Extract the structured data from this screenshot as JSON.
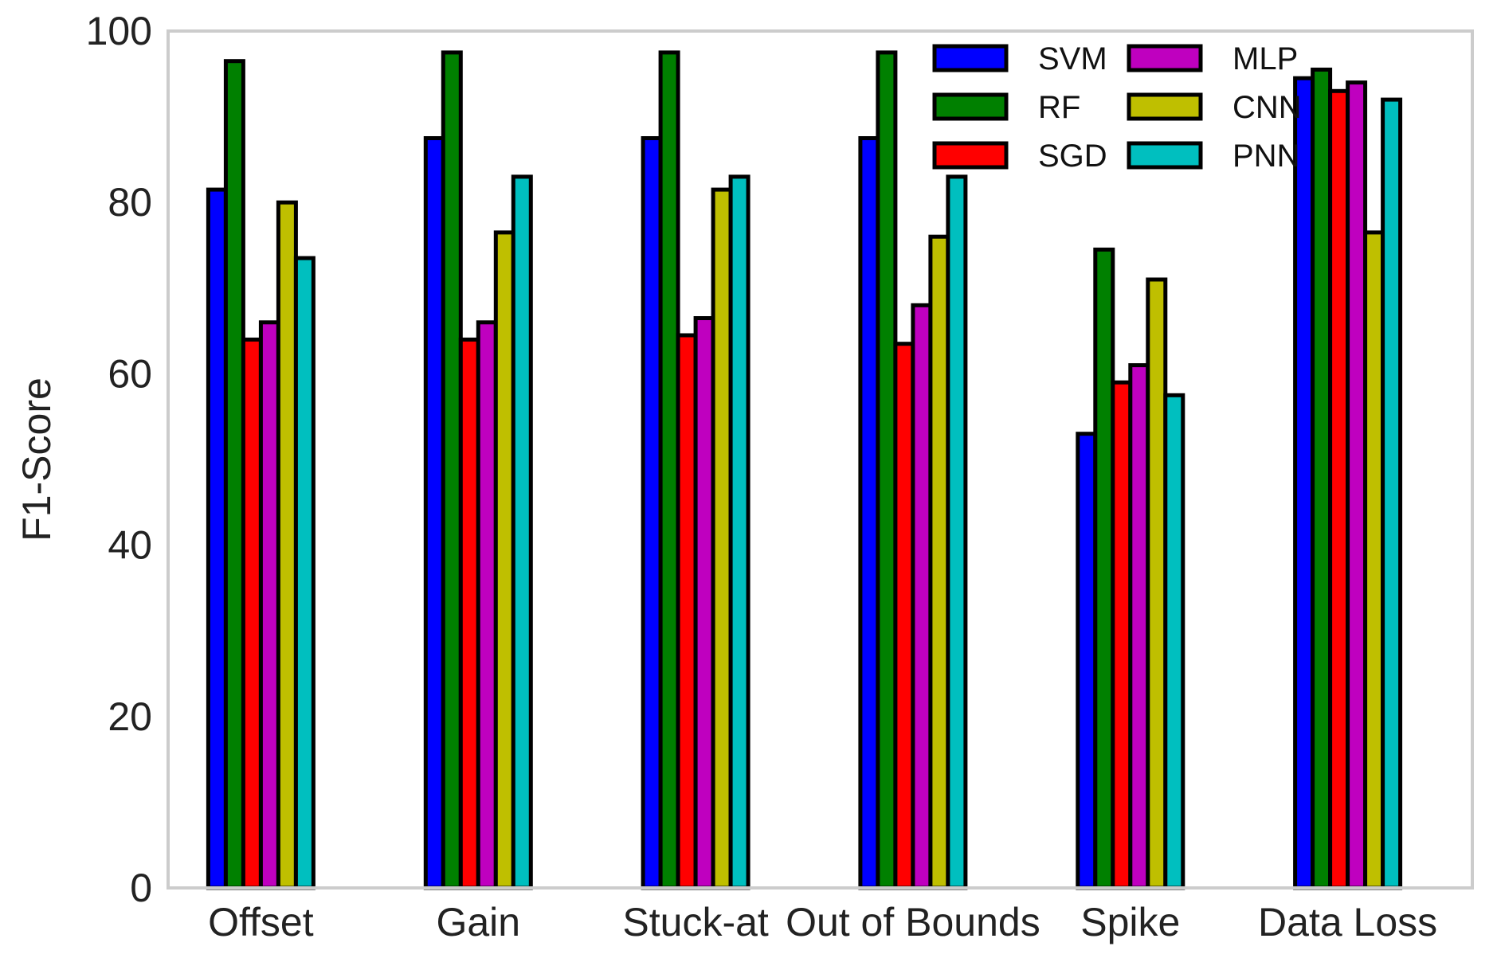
{
  "chart_data": {
    "type": "bar",
    "title": "",
    "xlabel": "",
    "ylabel": "F1-Score",
    "ylim": [
      0,
      100
    ],
    "yticks": [
      "0",
      "20",
      "40",
      "60",
      "80",
      "100"
    ],
    "grid": false,
    "legend_position": "top-right",
    "categories": [
      "Offset",
      "Gain",
      "Stuck-at",
      "Out of Bounds",
      "Spike",
      "Data Loss"
    ],
    "series": [
      {
        "name": "SVM",
        "color": "#0000ff",
        "values": [
          81.5,
          87.5,
          87.5,
          87.5,
          53.0,
          94.5
        ]
      },
      {
        "name": "RF",
        "color": "#008000",
        "values": [
          96.5,
          97.5,
          97.5,
          97.5,
          74.5,
          95.5
        ]
      },
      {
        "name": "SGD",
        "color": "#ff0000",
        "values": [
          64.0,
          64.0,
          64.5,
          63.5,
          59.0,
          93.0
        ]
      },
      {
        "name": "MLP",
        "color": "#bf00bf",
        "values": [
          66.0,
          66.0,
          66.5,
          68.0,
          61.0,
          94.0
        ]
      },
      {
        "name": "CNN",
        "color": "#bfbf00",
        "values": [
          80.0,
          76.5,
          81.5,
          76.0,
          71.0,
          76.5
        ]
      },
      {
        "name": "PNN",
        "color": "#00bfbf",
        "values": [
          73.5,
          83.0,
          83.0,
          83.0,
          57.5,
          92.0
        ]
      }
    ]
  }
}
